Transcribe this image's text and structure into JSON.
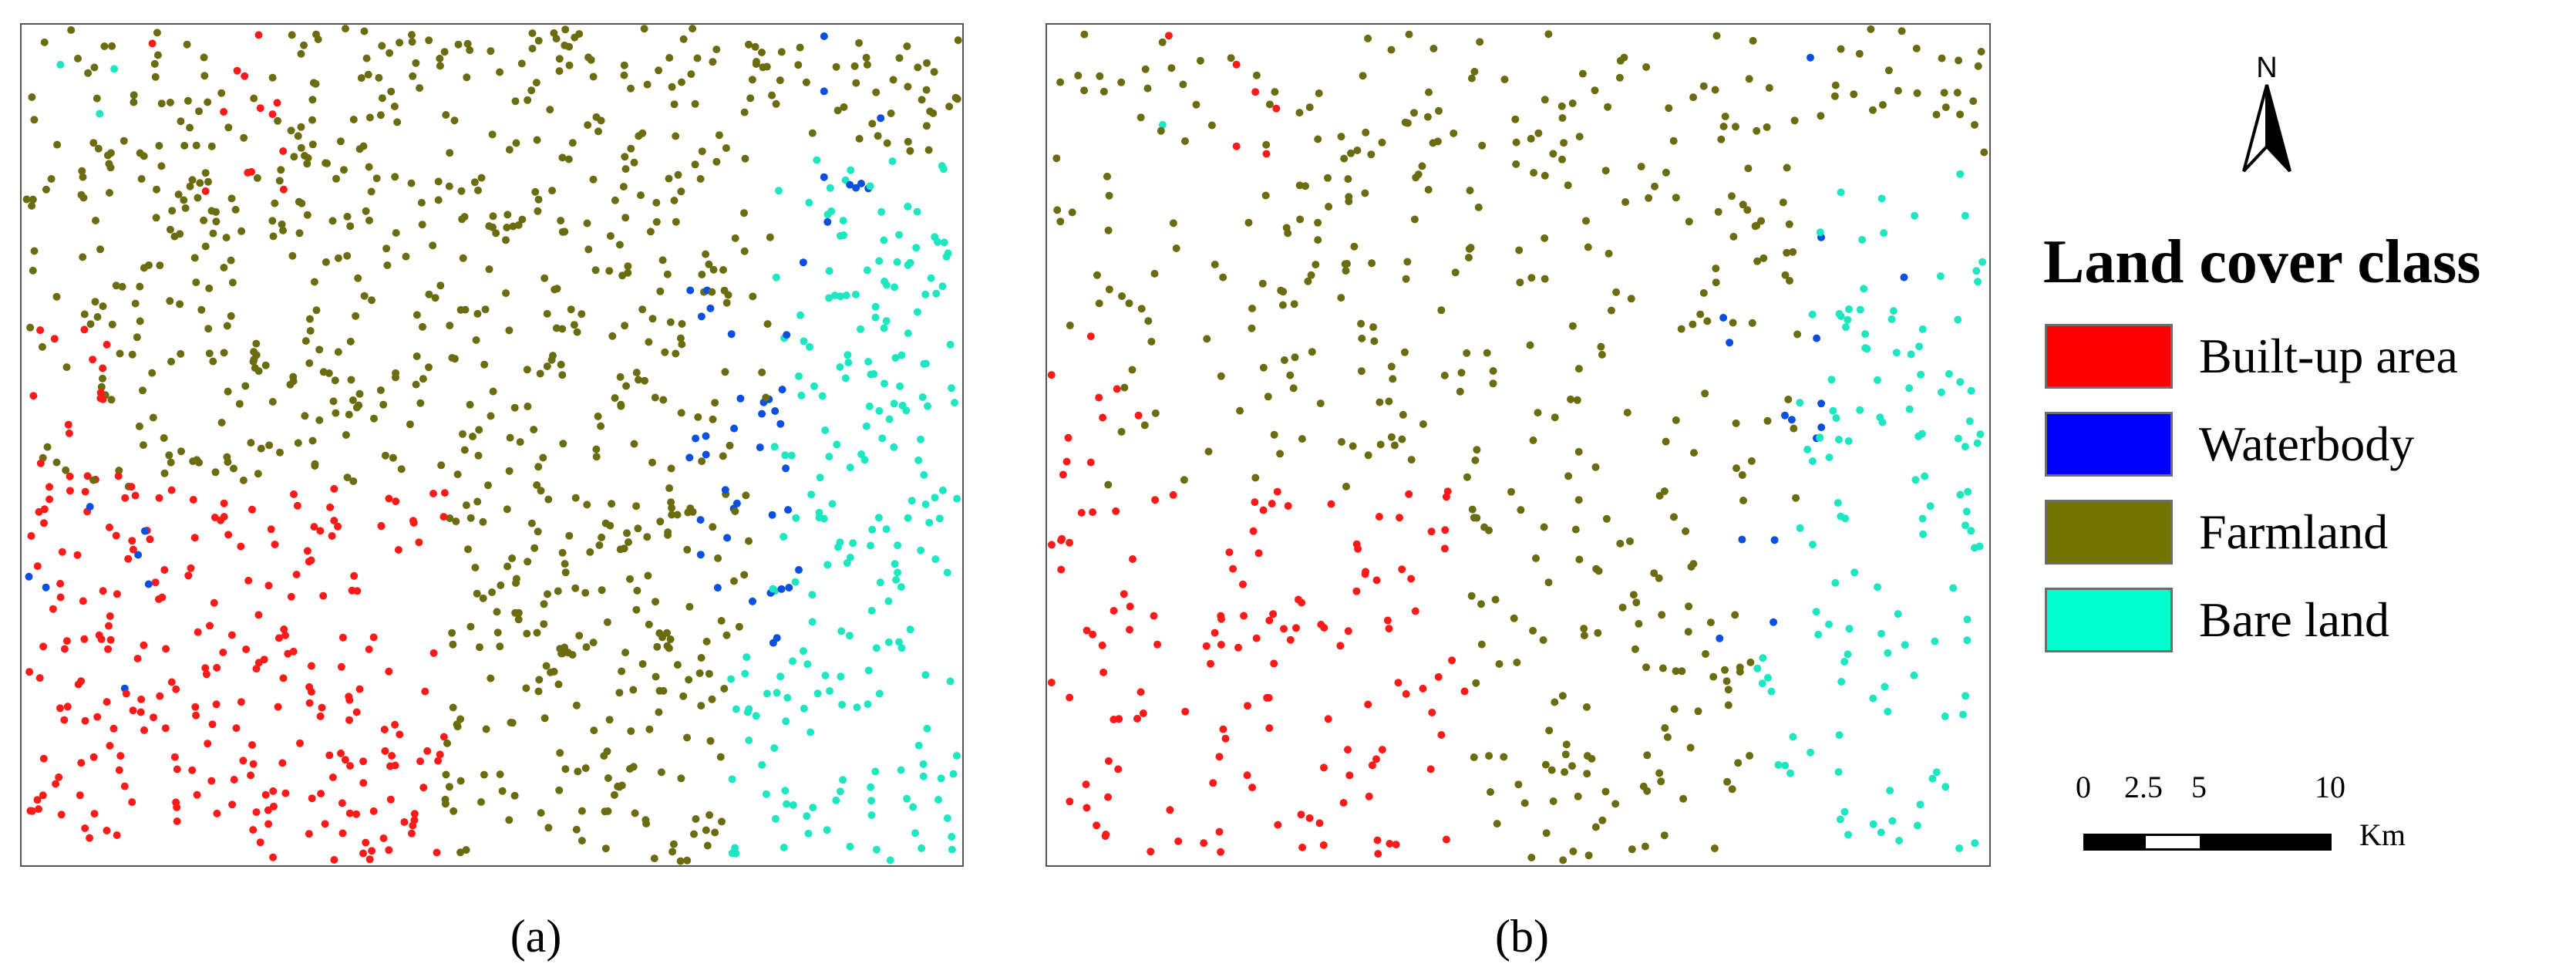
{
  "panels": {
    "a": {
      "caption": "(a)"
    },
    "b": {
      "caption": "(b)"
    }
  },
  "north_arrow": {
    "label": "N"
  },
  "legend": {
    "title": "Land cover class",
    "items": [
      {
        "label": "Built-up area",
        "color": "#ff0000"
      },
      {
        "label": "Waterbody",
        "color": "#0000ff"
      },
      {
        "label": "Farmland",
        "color": "#737300"
      },
      {
        "label": "Bare land",
        "color": "#00ffcc"
      }
    ]
  },
  "scale_bar": {
    "ticks": [
      "0",
      "2.5",
      "5",
      "10"
    ],
    "unit": "Km"
  },
  "sample_colors": {
    "built_up": "#ff1a1a",
    "water": "#0a4fe0",
    "farmland": "#6b6b10",
    "bare": "#1de6c0"
  }
}
